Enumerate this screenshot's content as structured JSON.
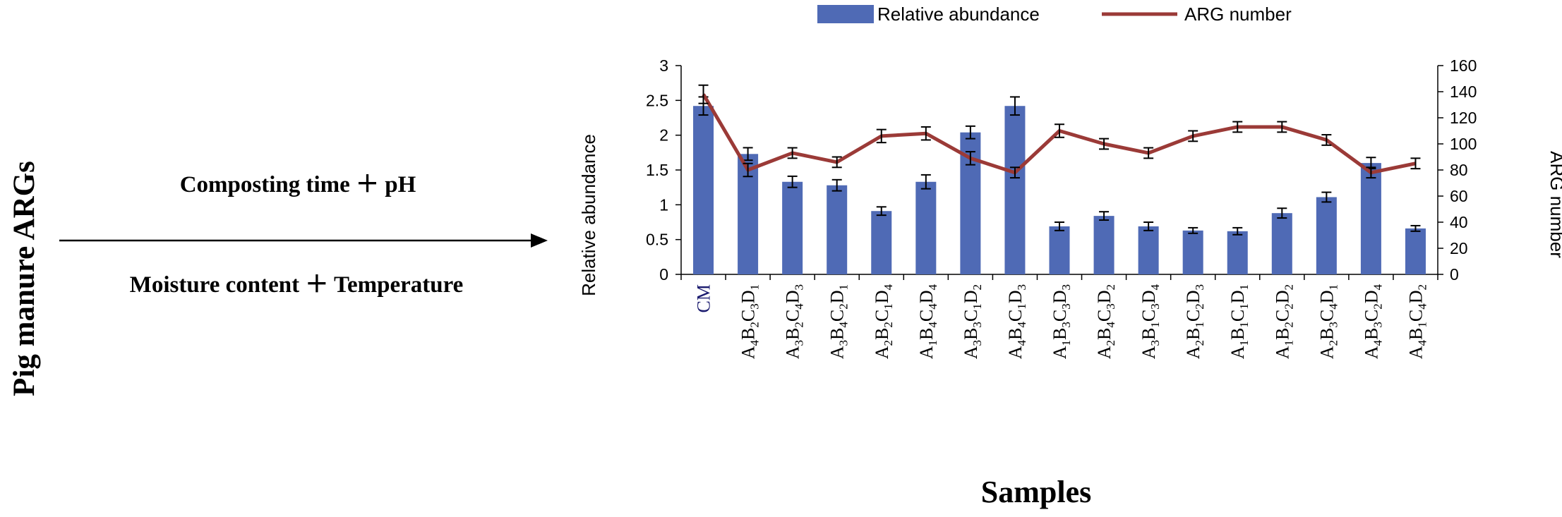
{
  "left_panel": {
    "side_title": "Pig manure ARGs",
    "factor_top": "Composting time ＋ pH",
    "factor_bottom": "Moisture content ＋ Temperature"
  },
  "chart_data": {
    "type": "bar",
    "categories": [
      {
        "text": "CM",
        "parts": [
          {
            "t": "CM"
          }
        ]
      },
      {
        "text": "A4B2C3D1",
        "parts": [
          {
            "t": "A"
          },
          {
            "s": "4"
          },
          {
            "t": "B"
          },
          {
            "s": "2"
          },
          {
            "t": "C"
          },
          {
            "s": "3"
          },
          {
            "t": "D"
          },
          {
            "s": "1"
          }
        ]
      },
      {
        "text": "A3B2C4D3",
        "parts": [
          {
            "t": "A"
          },
          {
            "s": "3"
          },
          {
            "t": "B"
          },
          {
            "s": "2"
          },
          {
            "t": "C"
          },
          {
            "s": "4"
          },
          {
            "t": "D"
          },
          {
            "s": "3"
          }
        ]
      },
      {
        "text": "A3B4C2D1",
        "parts": [
          {
            "t": "A"
          },
          {
            "s": "3"
          },
          {
            "t": "B"
          },
          {
            "s": "4"
          },
          {
            "t": "C"
          },
          {
            "s": "2"
          },
          {
            "t": "D"
          },
          {
            "s": "1"
          }
        ]
      },
      {
        "text": "A2B2C1D4",
        "parts": [
          {
            "t": "A"
          },
          {
            "s": "2"
          },
          {
            "t": "B"
          },
          {
            "s": "2"
          },
          {
            "t": "C"
          },
          {
            "s": "1"
          },
          {
            "t": "D"
          },
          {
            "s": "4"
          }
        ]
      },
      {
        "text": "A1B4C4D4",
        "parts": [
          {
            "t": "A"
          },
          {
            "s": "1"
          },
          {
            "t": "B"
          },
          {
            "s": "4"
          },
          {
            "t": "C"
          },
          {
            "s": "4"
          },
          {
            "t": "D"
          },
          {
            "s": "4"
          }
        ]
      },
      {
        "text": "A3B3C1D2",
        "parts": [
          {
            "t": "A"
          },
          {
            "s": "3"
          },
          {
            "t": "B"
          },
          {
            "s": "3"
          },
          {
            "t": "C"
          },
          {
            "s": "1"
          },
          {
            "t": "D"
          },
          {
            "s": "2"
          }
        ]
      },
      {
        "text": "A4B4C1D3",
        "parts": [
          {
            "t": "A"
          },
          {
            "s": "4"
          },
          {
            "t": "B"
          },
          {
            "s": "4"
          },
          {
            "t": "C"
          },
          {
            "s": "1"
          },
          {
            "t": "D"
          },
          {
            "s": "3"
          }
        ]
      },
      {
        "text": "A1B3C3D3",
        "parts": [
          {
            "t": "A"
          },
          {
            "s": "1"
          },
          {
            "t": "B"
          },
          {
            "s": "3"
          },
          {
            "t": "C"
          },
          {
            "s": "3"
          },
          {
            "t": "D"
          },
          {
            "s": "3"
          }
        ]
      },
      {
        "text": "A2B4C3D2",
        "parts": [
          {
            "t": "A"
          },
          {
            "s": "2"
          },
          {
            "t": "B"
          },
          {
            "s": "4"
          },
          {
            "t": "C"
          },
          {
            "s": "3"
          },
          {
            "t": "D"
          },
          {
            "s": "2"
          }
        ]
      },
      {
        "text": "A3B1C3D4",
        "parts": [
          {
            "t": "A"
          },
          {
            "s": "3"
          },
          {
            "t": "B"
          },
          {
            "s": "1"
          },
          {
            "t": "C"
          },
          {
            "s": "3"
          },
          {
            "t": "D"
          },
          {
            "s": "4"
          }
        ]
      },
      {
        "text": "A2B1C2D3",
        "parts": [
          {
            "t": "A"
          },
          {
            "s": "2"
          },
          {
            "t": "B"
          },
          {
            "s": "1"
          },
          {
            "t": "C"
          },
          {
            "s": "2"
          },
          {
            "t": "D"
          },
          {
            "s": "3"
          }
        ]
      },
      {
        "text": "A1B1C1D1",
        "parts": [
          {
            "t": "A"
          },
          {
            "s": "1"
          },
          {
            "t": "B"
          },
          {
            "s": "1"
          },
          {
            "t": "C"
          },
          {
            "s": "1"
          },
          {
            "t": "D"
          },
          {
            "s": "1"
          }
        ]
      },
      {
        "text": "A1B2C2D2",
        "parts": [
          {
            "t": "A"
          },
          {
            "s": "1"
          },
          {
            "t": "B"
          },
          {
            "s": "2"
          },
          {
            "t": "C"
          },
          {
            "s": "2"
          },
          {
            "t": "D"
          },
          {
            "s": "2"
          }
        ]
      },
      {
        "text": "A2B3C4D1",
        "parts": [
          {
            "t": "A"
          },
          {
            "s": "2"
          },
          {
            "t": "B"
          },
          {
            "s": "3"
          },
          {
            "t": "C"
          },
          {
            "s": "4"
          },
          {
            "t": "D"
          },
          {
            "s": "1"
          }
        ]
      },
      {
        "text": "A4B3C2D4",
        "parts": [
          {
            "t": "A"
          },
          {
            "s": "4"
          },
          {
            "t": "B"
          },
          {
            "s": "3"
          },
          {
            "t": "C"
          },
          {
            "s": "2"
          },
          {
            "t": "D"
          },
          {
            "s": "4"
          }
        ]
      },
      {
        "text": "A4B1C4D2",
        "parts": [
          {
            "t": "A"
          },
          {
            "s": "4"
          },
          {
            "t": "B"
          },
          {
            "s": "1"
          },
          {
            "t": "C"
          },
          {
            "s": "4"
          },
          {
            "t": "D"
          },
          {
            "s": "2"
          }
        ]
      }
    ],
    "series": [
      {
        "name": "Relative abundance",
        "type": "bar",
        "axis": "left",
        "color": "#4F6AB5",
        "values": [
          2.42,
          1.73,
          1.33,
          1.28,
          0.91,
          1.33,
          2.04,
          2.42,
          0.69,
          0.84,
          0.69,
          0.63,
          0.62,
          0.88,
          1.11,
          1.6,
          0.66
        ],
        "errors": [
          0.13,
          0.09,
          0.08,
          0.08,
          0.06,
          0.1,
          0.09,
          0.13,
          0.06,
          0.06,
          0.06,
          0.04,
          0.05,
          0.07,
          0.07,
          0.08,
          0.04
        ]
      },
      {
        "name": "ARG number",
        "type": "line",
        "axis": "right",
        "color": "#9B3A37",
        "values": [
          138,
          80,
          93,
          86,
          106,
          108,
          89,
          78,
          110,
          100,
          93,
          106,
          113,
          113,
          103,
          78,
          85
        ],
        "errors": [
          7,
          5,
          4,
          4,
          5,
          5,
          5,
          4,
          5,
          4,
          4,
          4,
          4,
          4,
          4,
          4,
          4
        ]
      }
    ],
    "xlabel": "Samples",
    "ylabel": "Relative abundance",
    "y2label": "ARG number",
    "ylim": [
      0,
      3
    ],
    "y2lim": [
      0,
      160
    ],
    "yticks": [
      0,
      0.5,
      1,
      1.5,
      2,
      2.5,
      3
    ],
    "y2ticks": [
      0,
      20,
      40,
      60,
      80,
      100,
      120,
      140,
      160
    ],
    "legend_position": "top",
    "grid": false
  }
}
